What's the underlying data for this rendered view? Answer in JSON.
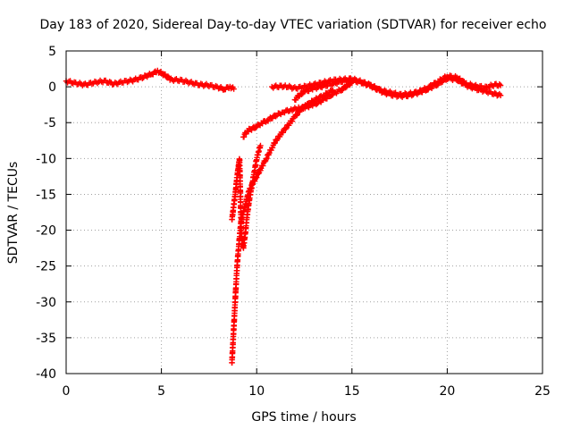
{
  "chart_data": {
    "type": "scatter",
    "title": "Day 183 of 2020, Sidereal Day-to-day VTEC variation (SDTVAR) for receiver echo",
    "xlabel": "GPS time / hours",
    "ylabel": "SDTVAR / TECUs",
    "xlim": [
      0,
      25
    ],
    "ylim": [
      -40,
      5
    ],
    "xticks": [
      0,
      5,
      10,
      15,
      20,
      25
    ],
    "xtick_labels": [
      "0",
      "5",
      "10",
      "15",
      "20",
      "25"
    ],
    "yticks": [
      5,
      0,
      -5,
      -10,
      -15,
      -20,
      -25,
      -30,
      -35,
      -40
    ],
    "ytick_labels": [
      "5",
      "0",
      "-5",
      "-10",
      "-15",
      "-20",
      "-25",
      "-30",
      "-35",
      "-40"
    ],
    "grid": true,
    "marker": "+",
    "series_color": "#ff0000",
    "series": [
      {
        "name": "SDTVAR",
        "segments": [
          {
            "x": [
              0.0,
              0.5,
              1.0,
              1.5,
              2.0,
              2.5,
              3.0,
              3.5,
              4.0,
              4.5,
              4.8,
              5.2,
              5.5,
              6.0,
              6.5,
              7.0,
              7.5,
              8.0,
              8.3,
              8.6,
              8.8
            ],
            "y": [
              0.8,
              0.5,
              0.3,
              0.6,
              0.8,
              0.4,
              0.7,
              0.9,
              1.3,
              1.8,
              2.2,
              1.6,
              1.0,
              0.9,
              0.6,
              0.3,
              0.2,
              -0.1,
              -0.3,
              0.0,
              -0.3
            ]
          },
          {
            "x": [
              10.8,
              11.5,
              12.0,
              12.5,
              13.0,
              13.5,
              14.0,
              14.5,
              15.0,
              15.5,
              16.0,
              16.5,
              17.0,
              17.5,
              18.0,
              18.5,
              19.0,
              19.5,
              20.0,
              20.5,
              21.0,
              21.5,
              22.0,
              22.5,
              22.8
            ],
            "y": [
              0.0,
              0.1,
              -0.2,
              0.0,
              0.3,
              0.6,
              0.9,
              1.0,
              1.1,
              0.7,
              0.2,
              -0.5,
              -0.8,
              -1.1,
              -1.0,
              -0.7,
              -0.1,
              0.7,
              1.5,
              1.3,
              0.4,
              0.1,
              -0.1,
              0.3,
              0.2
            ]
          },
          {
            "x": [
              12.0,
              12.3,
              12.6,
              13.0,
              13.5,
              14.0,
              14.5,
              15.0,
              15.5,
              16.0,
              16.5,
              17.0,
              17.5,
              18.0,
              18.5,
              19.0,
              19.5,
              20.0,
              20.5,
              21.0,
              21.5,
              22.0,
              22.5,
              22.8
            ],
            "y": [
              -1.8,
              -1.0,
              -0.6,
              -0.2,
              0.1,
              0.4,
              0.8,
              0.9,
              0.6,
              0.1,
              -0.6,
              -1.1,
              -1.3,
              -1.2,
              -0.8,
              -0.3,
              0.4,
              1.2,
              1.0,
              0.2,
              -0.3,
              -0.6,
              -1.0,
              -1.2
            ]
          },
          {
            "x": [
              8.7,
              8.75,
              8.8,
              8.85,
              8.9,
              8.95,
              9.0,
              9.05,
              9.1,
              9.2,
              9.3,
              9.4,
              9.5,
              9.6,
              9.7,
              9.8,
              9.9,
              10.0,
              10.1,
              10.2
            ],
            "y": [
              -18.5,
              -17.5,
              -16.5,
              -15.5,
              -14.5,
              -13.0,
              -12.0,
              -11.0,
              -10.0,
              -21.0,
              -22.5,
              -20.5,
              -18.0,
              -16.0,
              -14.5,
              -13.0,
              -11.5,
              -10.0,
              -9.0,
              -8.2
            ]
          },
          {
            "x": [
              8.7,
              8.75,
              8.8,
              8.85,
              8.9,
              8.95,
              9.0,
              9.05,
              9.1,
              9.15,
              9.2,
              9.3,
              9.4,
              9.5,
              9.6,
              9.8,
              10.0,
              10.2,
              10.5,
              10.8,
              11.0,
              11.3,
              11.6,
              12.0,
              12.3,
              12.6,
              13.0,
              13.5,
              14.0
            ],
            "y": [
              -38.5,
              -36.0,
              -33.5,
              -31.0,
              -28.5,
              -26.0,
              -24.0,
              -22.5,
              -21.0,
              -19.5,
              -18.5,
              -17.5,
              -16.5,
              -15.5,
              -14.5,
              -13.5,
              -12.5,
              -11.5,
              -10.0,
              -8.5,
              -7.5,
              -6.5,
              -5.5,
              -4.2,
              -3.2,
              -2.6,
              -1.9,
              -1.2,
              -0.5
            ]
          },
          {
            "x": [
              9.3,
              9.4,
              9.5,
              9.6,
              9.8,
              10.0,
              10.3,
              10.6,
              11.0,
              11.4,
              11.8,
              12.2,
              12.6,
              13.0,
              13.5,
              14.0,
              14.5,
              15.0
            ],
            "y": [
              -7.0,
              -6.5,
              -6.3,
              -6.0,
              -5.8,
              -5.5,
              -5.0,
              -4.6,
              -4.0,
              -3.5,
              -3.2,
              -3.0,
              -2.8,
              -2.5,
              -1.8,
              -1.0,
              -0.3,
              0.6
            ]
          }
        ]
      }
    ]
  }
}
